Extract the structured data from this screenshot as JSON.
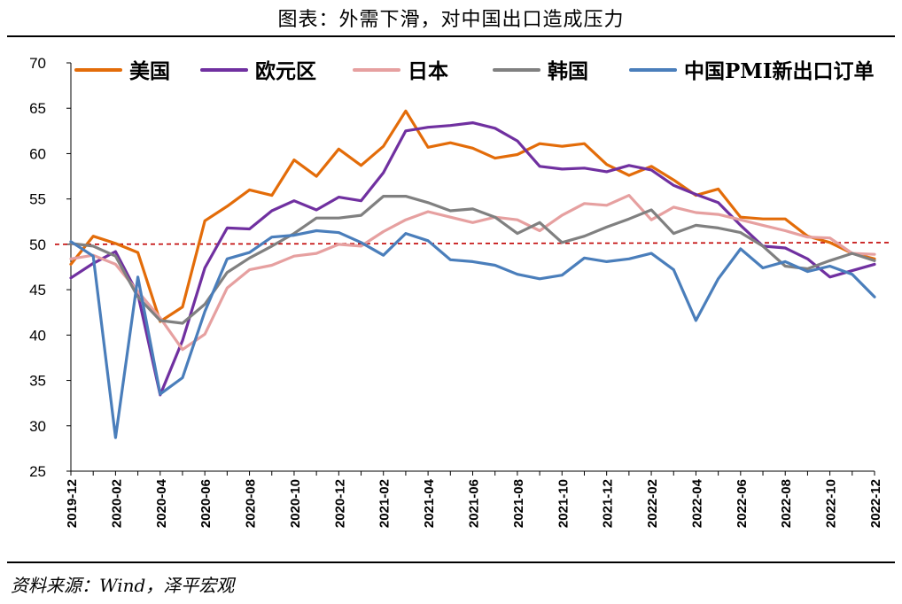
{
  "chart_data": {
    "type": "line",
    "title": "图表：外需下滑，对中国出口造成压力",
    "source": "资料来源：Wind，泽平宏观",
    "ylim": [
      25,
      70
    ],
    "y_ticks": [
      "25",
      "30",
      "35",
      "40",
      "45",
      "50",
      "55",
      "60",
      "65",
      "70"
    ],
    "x_tick_labels": [
      "2019-12",
      "2020-02",
      "2020-04",
      "2020-06",
      "2020-08",
      "2020-10",
      "2020-12",
      "2021-02",
      "2021-04",
      "2021-06",
      "2021-08",
      "2021-10",
      "2021-12",
      "2022-02",
      "2022-04",
      "2022-06",
      "2022-08",
      "2022-10",
      "2022-12"
    ],
    "x": [
      "2019-12",
      "2020-01",
      "2020-02",
      "2020-03",
      "2020-04",
      "2020-05",
      "2020-06",
      "2020-07",
      "2020-08",
      "2020-09",
      "2020-10",
      "2020-11",
      "2020-12",
      "2021-01",
      "2021-02",
      "2021-03",
      "2021-04",
      "2021-05",
      "2021-06",
      "2021-07",
      "2021-08",
      "2021-09",
      "2021-10",
      "2021-11",
      "2021-12",
      "2022-01",
      "2022-02",
      "2022-03",
      "2022-04",
      "2022-05",
      "2022-06",
      "2022-07",
      "2022-08",
      "2022-09",
      "2022-10",
      "2022-11",
      "2022-12"
    ],
    "reference_line": {
      "value": 50,
      "style": "dashed",
      "color": "#c00000"
    },
    "legend_position": "top",
    "series": [
      {
        "name": "美国",
        "color": "#e36c09",
        "values": [
          47.8,
          50.9,
          50.1,
          49.1,
          41.5,
          43.1,
          52.6,
          54.2,
          56.0,
          55.4,
          59.3,
          57.5,
          60.5,
          58.7,
          60.8,
          64.7,
          60.7,
          61.2,
          60.6,
          59.5,
          59.9,
          61.1,
          60.8,
          61.1,
          58.8,
          57.6,
          58.6,
          57.1,
          55.4,
          56.1,
          53.0,
          52.8,
          52.8,
          50.9,
          50.2,
          49.0,
          48.4
        ]
      },
      {
        "name": "欧元区",
        "color": "#7030a0",
        "values": [
          46.3,
          47.9,
          49.2,
          44.5,
          33.4,
          39.4,
          47.4,
          51.8,
          51.7,
          53.7,
          54.8,
          53.8,
          55.2,
          54.8,
          57.9,
          62.5,
          62.9,
          63.1,
          63.4,
          62.8,
          61.4,
          58.6,
          58.3,
          58.4,
          58.0,
          58.7,
          58.2,
          56.5,
          55.5,
          54.6,
          52.1,
          49.8,
          49.6,
          48.4,
          46.4,
          47.1,
          47.8
        ]
      },
      {
        "name": "日本",
        "color": "#e6a0a0",
        "values": [
          48.4,
          48.8,
          47.8,
          44.8,
          41.9,
          38.4,
          40.1,
          45.2,
          47.2,
          47.7,
          48.7,
          49.0,
          50.0,
          49.8,
          51.4,
          52.7,
          53.6,
          53.0,
          52.4,
          53.0,
          52.7,
          51.5,
          53.2,
          54.5,
          54.3,
          55.4,
          52.7,
          54.1,
          53.5,
          53.3,
          52.7,
          52.1,
          51.5,
          50.8,
          50.7,
          49.0,
          48.9
        ]
      },
      {
        "name": "韩国",
        "color": "#808080",
        "values": [
          50.1,
          49.8,
          48.7,
          44.2,
          41.6,
          41.3,
          43.4,
          46.9,
          48.5,
          49.8,
          51.2,
          52.9,
          52.9,
          53.2,
          55.3,
          55.3,
          54.6,
          53.7,
          53.9,
          53.0,
          51.2,
          52.4,
          50.2,
          50.9,
          51.9,
          52.8,
          53.8,
          51.2,
          52.1,
          51.8,
          51.3,
          49.8,
          47.6,
          47.3,
          48.2,
          49.0,
          48.2
        ]
      },
      {
        "name": "中国PMI新出口订单",
        "color": "#4a7ebb",
        "values": [
          50.3,
          48.7,
          28.7,
          46.4,
          33.5,
          35.3,
          42.6,
          48.4,
          49.1,
          50.8,
          51.0,
          51.5,
          51.3,
          50.2,
          48.8,
          51.2,
          50.4,
          48.3,
          48.1,
          47.7,
          46.7,
          46.2,
          46.6,
          48.5,
          48.1,
          48.4,
          49.0,
          47.2,
          41.6,
          46.2,
          49.5,
          47.4,
          48.1,
          47.0,
          47.6,
          46.7,
          44.2
        ]
      }
    ]
  }
}
